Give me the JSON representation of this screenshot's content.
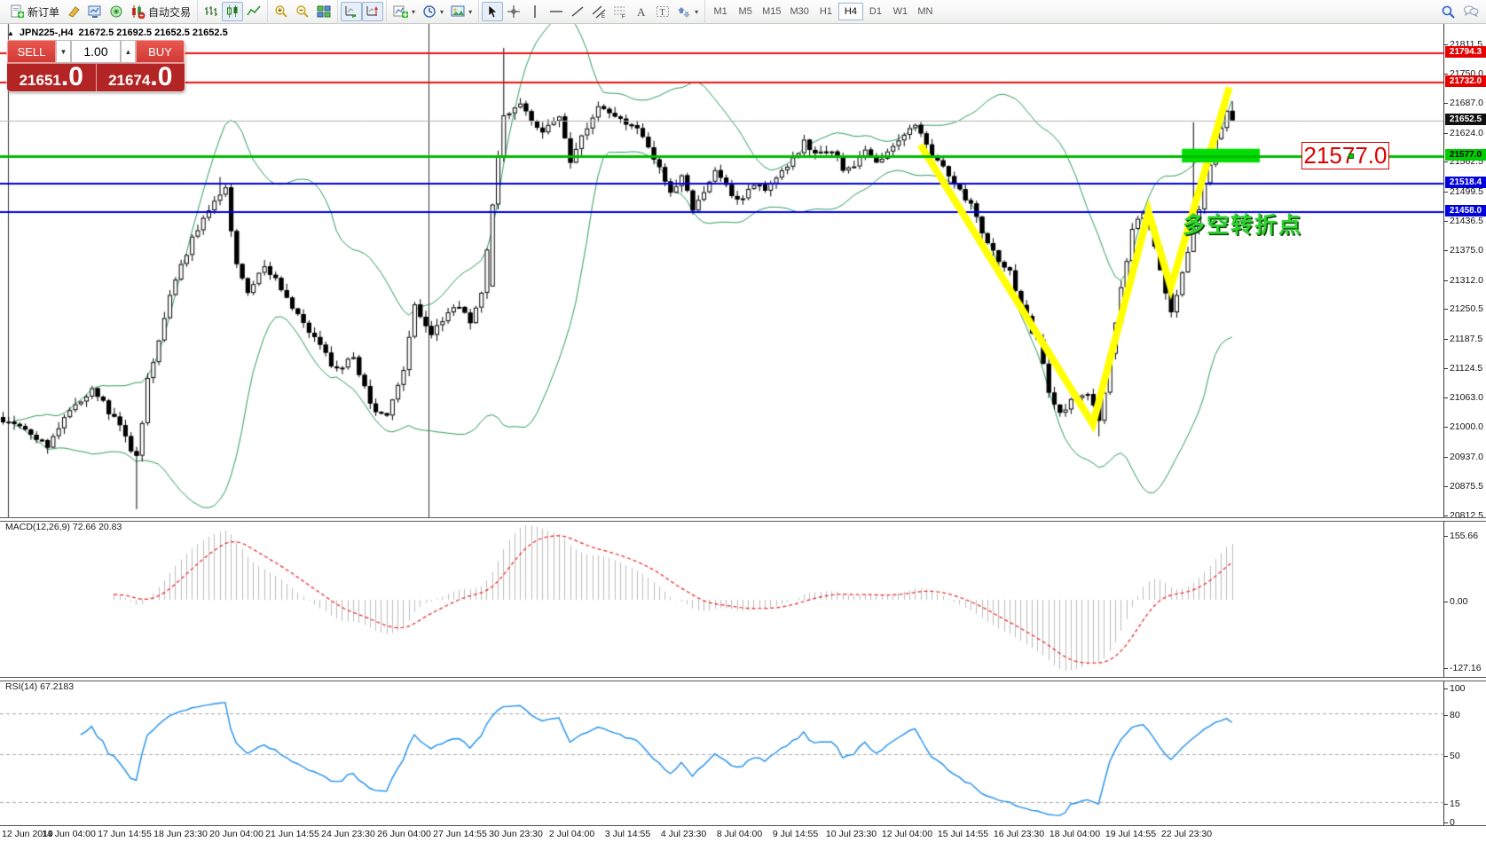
{
  "window": {
    "symbol_period": "JPN225-,H4",
    "ohlc": "21672.5 21692.5 21652.5 21652.5",
    "collapse_glyph": "▲"
  },
  "toolbar": {
    "groups": [
      {
        "items": [
          {
            "name": "new-order-button",
            "icon": "new-order-icon",
            "label": "新订单"
          },
          {
            "name": "styler-button",
            "icon": "highlighter-icon"
          },
          {
            "name": "terminal-button",
            "icon": "terminal-icon"
          },
          {
            "name": "connection-button",
            "icon": "connection-icon"
          },
          {
            "name": "autotrading-button",
            "icon": "autotrading-icon",
            "label": "自动交易"
          }
        ]
      },
      {
        "items": [
          {
            "name": "bar-chart-button",
            "icon": "bar-chart-icon"
          },
          {
            "name": "candlestick-button",
            "icon": "candlestick-icon",
            "active": true
          },
          {
            "name": "line-chart-button",
            "icon": "line-chart-icon"
          }
        ]
      },
      {
        "items": [
          {
            "name": "zoom-in-button",
            "icon": "zoom-in-icon"
          },
          {
            "name": "zoom-out-button",
            "icon": "zoom-out-icon"
          },
          {
            "name": "tile-windows-button",
            "icon": "tile-windows-icon"
          }
        ]
      },
      {
        "items": [
          {
            "name": "auto-scroll-button",
            "icon": "auto-scroll-icon",
            "active": true
          },
          {
            "name": "chart-shift-button",
            "icon": "chart-shift-icon",
            "active": true
          }
        ]
      },
      {
        "items": [
          {
            "name": "indicators-button",
            "icon": "indicators-icon",
            "caret": true
          },
          {
            "name": "periods-button",
            "icon": "periods-icon",
            "caret": true
          },
          {
            "name": "templates-button",
            "icon": "templates-icon",
            "caret": true
          }
        ]
      },
      {
        "items": [
          {
            "name": "cursor-button",
            "icon": "cursor-icon",
            "active": true
          },
          {
            "name": "crosshair-button",
            "icon": "crosshair-icon"
          },
          {
            "name": "vertical-line-button",
            "icon": "vline-icon"
          },
          {
            "name": "horizontal-line-button",
            "icon": "hline-icon"
          },
          {
            "name": "trendline-button",
            "icon": "trendline-icon"
          },
          {
            "name": "channel-button",
            "icon": "channel-icon"
          },
          {
            "name": "fibonacci-button",
            "icon": "fibo-icon"
          },
          {
            "name": "text-button",
            "icon": "text-icon"
          },
          {
            "name": "text-label-button",
            "icon": "label-icon"
          },
          {
            "name": "arrows-button",
            "icon": "arrows-icon",
            "caret": true
          }
        ]
      }
    ],
    "timeframes": [
      {
        "name": "tf-m1",
        "label": "M1"
      },
      {
        "name": "tf-m5",
        "label": "M5"
      },
      {
        "name": "tf-m15",
        "label": "M15"
      },
      {
        "name": "tf-m30",
        "label": "M30"
      },
      {
        "name": "tf-h1",
        "label": "H1"
      },
      {
        "name": "tf-h4",
        "label": "H4",
        "active": true
      },
      {
        "name": "tf-d1",
        "label": "D1"
      },
      {
        "name": "tf-w1",
        "label": "W1"
      },
      {
        "name": "tf-mn",
        "label": "MN"
      }
    ],
    "right_icons": [
      {
        "name": "search-button",
        "icon": "search-icon"
      },
      {
        "name": "chat-button",
        "icon": "chat-icon"
      }
    ]
  },
  "trade_panel": {
    "sell_label": "SELL",
    "buy_label": "BUY",
    "volume": "1.00",
    "sell_price_main": "21651",
    "sell_price_pips": ".0",
    "buy_price_main": "21674",
    "buy_price_pips": ".0"
  },
  "annotations": {
    "price_callout": "21577.0",
    "turning_point": "多空转折点"
  },
  "macd_panel": {
    "label": "MACD(12,26,9)",
    "values": "72.66 20.83",
    "axis": [
      "155.66",
      "0.00",
      "-127.16"
    ]
  },
  "rsi_panel": {
    "label": "RSI(14)",
    "value": "67.2183",
    "levels": [
      "100",
      "80",
      "50",
      "15",
      "0"
    ]
  },
  "price_axis": {
    "ticks": [
      "21811.5",
      "21750.0",
      "21687.0",
      "21624.0",
      "21562.5",
      "21499.5",
      "21436.5",
      "21375.0",
      "21312.0",
      "21250.5",
      "21187.5",
      "21124.5",
      "21063.0",
      "21000.0",
      "20937.0",
      "20875.5",
      "20812.5"
    ],
    "badges": [
      {
        "value": "21794.3",
        "bg": "#e60000",
        "fg": "#ffffff"
      },
      {
        "value": "21732.0",
        "bg": "#e60000",
        "fg": "#ffffff"
      },
      {
        "value": "21652.5",
        "bg": "#111111",
        "fg": "#ffffff"
      },
      {
        "value": "21577.0",
        "bg": "#00cc00",
        "fg": "#000000"
      },
      {
        "value": "21518.4",
        "bg": "#0000dd",
        "fg": "#ffffff"
      },
      {
        "value": "21458.0",
        "bg": "#0000dd",
        "fg": "#ffffff"
      }
    ]
  },
  "time_axis": {
    "labels": [
      "12 Jun 2019",
      "14 Jun 04:00",
      "17 Jun 14:55",
      "18 Jun 23:30",
      "20 Jun 04:00",
      "21 Jun 14:55",
      "24 Jun 23:30",
      "26 Jun 04:00",
      "27 Jun 14:55",
      "30 Jun 23:30",
      "2 Jul 04:00",
      "3 Jul 14:55",
      "4 Jul 23:30",
      "8 Jul 04:00",
      "9 Jul 14:55",
      "10 Jul 23:30",
      "12 Jul 04:00",
      "15 Jul 14:55",
      "16 Jul 23:30",
      "18 Jul 04:00",
      "19 Jul 14:55",
      "22 Jul 23:30"
    ]
  },
  "chart_data": {
    "type": "candlestick",
    "symbol": "JPN225-",
    "period": "H4",
    "current_ohlc": {
      "open": 21672.5,
      "high": 21692.5,
      "low": 21652.5,
      "close": 21652.5
    },
    "price_range": [
      20812.5,
      21811.5
    ],
    "bars_total": 222,
    "price_anchors": [
      [
        0,
        21020
      ],
      [
        4,
        20995
      ],
      [
        8,
        20965
      ],
      [
        12,
        21040
      ],
      [
        16,
        21085
      ],
      [
        20,
        21020
      ],
      [
        24,
        20935
      ],
      [
        26,
        21100
      ],
      [
        30,
        21280
      ],
      [
        34,
        21400
      ],
      [
        38,
        21480
      ],
      [
        40,
        21505
      ],
      [
        42,
        21340
      ],
      [
        44,
        21285
      ],
      [
        47,
        21340
      ],
      [
        50,
        21300
      ],
      [
        53,
        21235
      ],
      [
        57,
        21170
      ],
      [
        60,
        21120
      ],
      [
        63,
        21150
      ],
      [
        66,
        21050
      ],
      [
        69,
        21020
      ],
      [
        72,
        21120
      ],
      [
        74,
        21255
      ],
      [
        77,
        21200
      ],
      [
        81,
        21260
      ],
      [
        84,
        21230
      ],
      [
        86,
        21280
      ],
      [
        88,
        21480
      ],
      [
        90,
        21665
      ],
      [
        93,
        21690
      ],
      [
        95,
        21650
      ],
      [
        97,
        21630
      ],
      [
        100,
        21660
      ],
      [
        102,
        21570
      ],
      [
        105,
        21640
      ],
      [
        107,
        21690
      ],
      [
        109,
        21675
      ],
      [
        112,
        21650
      ],
      [
        114,
        21630
      ],
      [
        116,
        21600
      ],
      [
        118,
        21550
      ],
      [
        120,
        21500
      ],
      [
        122,
        21530
      ],
      [
        124,
        21465
      ],
      [
        126,
        21500
      ],
      [
        128,
        21545
      ],
      [
        131,
        21490
      ],
      [
        133,
        21480
      ],
      [
        135,
        21520
      ],
      [
        137,
        21510
      ],
      [
        140,
        21540
      ],
      [
        142,
        21570
      ],
      [
        144,
        21610
      ],
      [
        146,
        21580
      ],
      [
        149,
        21590
      ],
      [
        151,
        21545
      ],
      [
        153,
        21560
      ],
      [
        155,
        21585
      ],
      [
        157,
        21570
      ],
      [
        160,
        21590
      ],
      [
        162,
        21620
      ],
      [
        164,
        21648
      ],
      [
        166,
        21600
      ],
      [
        170,
        21540
      ],
      [
        174,
        21470
      ],
      [
        177,
        21390
      ],
      [
        181,
        21330
      ],
      [
        183,
        21260
      ],
      [
        186,
        21180
      ],
      [
        188,
        21080
      ],
      [
        190,
        21030
      ],
      [
        192,
        21060
      ],
      [
        195,
        21080
      ],
      [
        197,
        21012
      ],
      [
        199,
        21150
      ],
      [
        201,
        21300
      ],
      [
        203,
        21420
      ],
      [
        205,
        21452
      ],
      [
        206,
        21430
      ],
      [
        208,
        21330
      ],
      [
        210,
        21245
      ],
      [
        212,
        21330
      ],
      [
        214,
        21420
      ],
      [
        216,
        21520
      ],
      [
        218,
        21610
      ],
      [
        220,
        21672.5
      ],
      [
        221,
        21652.5
      ]
    ],
    "special_bars": {
      "24": {
        "low": 20828
      },
      "39": {
        "high": 21532
      },
      "88": {
        "open": 21300
      },
      "90": {
        "high": 21806
      },
      "197": {
        "low": 20982
      },
      "214": {
        "low": 21400,
        "high": 21648
      },
      "220": {
        "close": 21672.5
      },
      "221": {
        "open": 21672.5,
        "high": 21692.5,
        "low": 21652.5,
        "close": 21652.5
      }
    },
    "levels": [
      {
        "price": 21794.3,
        "color": "#ee1111",
        "width": 2
      },
      {
        "price": 21732.0,
        "color": "#ee1111",
        "width": 2
      },
      {
        "price": 21652.5,
        "color": "#b4b4b4",
        "width": 1
      },
      {
        "price": 21577.0,
        "color": "#00bb00",
        "width": 3
      },
      {
        "price": 21518.4,
        "color": "#0000e6",
        "width": 2
      },
      {
        "price": 21458.0,
        "color": "#0000e6",
        "width": 2
      }
    ],
    "vertical_lines_bars": [
      1,
      76.5
    ],
    "yellow_zigzag": [
      [
        165,
        21600
      ],
      [
        196,
        21008
      ],
      [
        206,
        21458
      ],
      [
        210,
        21298
      ],
      [
        220.5,
        21722
      ]
    ],
    "highlight_rect": {
      "bar_from": 212,
      "bar_to": 226,
      "price_from": 21563,
      "price_to": 21592
    },
    "indicators": {
      "bollinger": {
        "period": 20,
        "deviation": 2,
        "color": "#2e9e5b"
      },
      "macd": {
        "fast": 12,
        "slow": 26,
        "signal": 9,
        "histogram_color": "#bdbdbd",
        "signal_color": "#ee2222"
      },
      "rsi": {
        "period": 14,
        "color": "#2090ee",
        "levels": [
          80,
          50,
          15
        ]
      }
    }
  }
}
